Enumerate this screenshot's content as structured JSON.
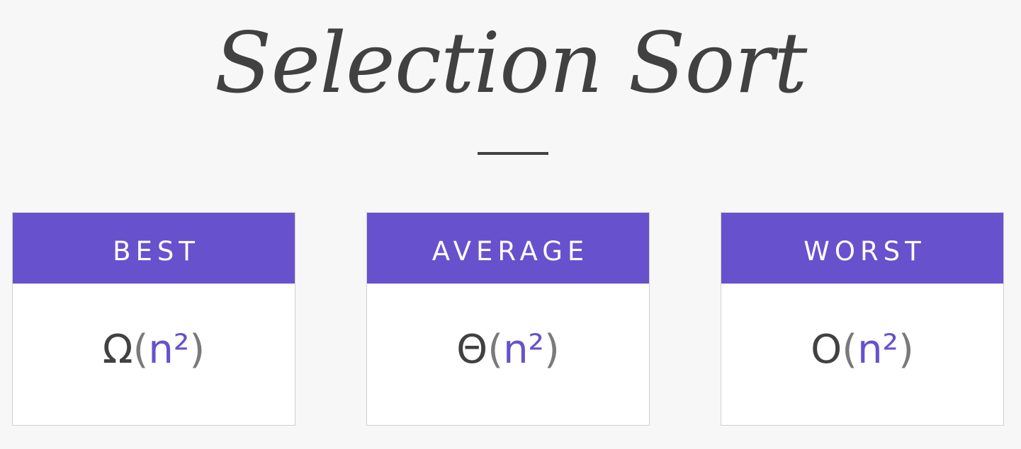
{
  "title": "Selection Sort",
  "colors": {
    "accent": "#6851cc",
    "text": "#414141",
    "background": "#f7f7f7"
  },
  "cards": [
    {
      "label": "BEST",
      "symbol": "Ω",
      "open": "(",
      "term": "n²",
      "close": ")"
    },
    {
      "label": "AVERAGE",
      "symbol": "Θ",
      "open": "(",
      "term": "n²",
      "close": ")"
    },
    {
      "label": "WORST",
      "symbol": "O",
      "open": "(",
      "term": "n²",
      "close": ")"
    }
  ]
}
